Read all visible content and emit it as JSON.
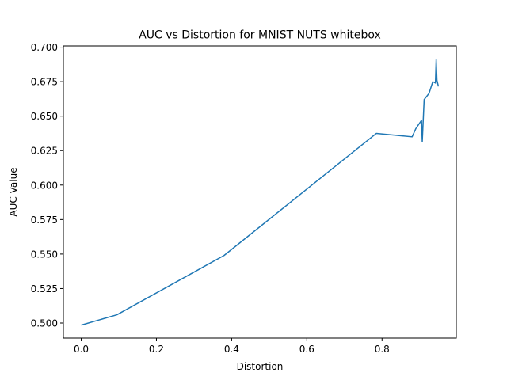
{
  "chart_data": {
    "type": "line",
    "title": "AUC vs Distortion for MNIST NUTS whitebox",
    "xlabel": "Distortion",
    "ylabel": "AUC Value",
    "xlim": [
      -0.0475,
      0.9975
    ],
    "ylim": [
      0.4891,
      0.7009
    ],
    "xticks": [
      0.0,
      0.2,
      0.4,
      0.6,
      0.8
    ],
    "xtick_labels": [
      "0.0",
      "0.2",
      "0.4",
      "0.6",
      "0.8"
    ],
    "yticks": [
      0.5,
      0.525,
      0.55,
      0.575,
      0.6,
      0.625,
      0.65,
      0.675,
      0.7
    ],
    "ytick_labels": [
      "0.500",
      "0.525",
      "0.550",
      "0.575",
      "0.600",
      "0.625",
      "0.650",
      "0.675",
      "0.700"
    ],
    "grid": false,
    "series": [
      {
        "color": "#1f77b4",
        "x": [
          0.0,
          0.095,
          0.38,
          0.785,
          0.88,
          0.89,
          0.905,
          0.907,
          0.912,
          0.925,
          0.935,
          0.942,
          0.944,
          0.946,
          0.95
        ],
        "y": [
          0.4985,
          0.506,
          0.549,
          0.6375,
          0.635,
          0.641,
          0.647,
          0.6315,
          0.662,
          0.6665,
          0.675,
          0.674,
          0.691,
          0.676,
          0.6715
        ]
      }
    ]
  }
}
